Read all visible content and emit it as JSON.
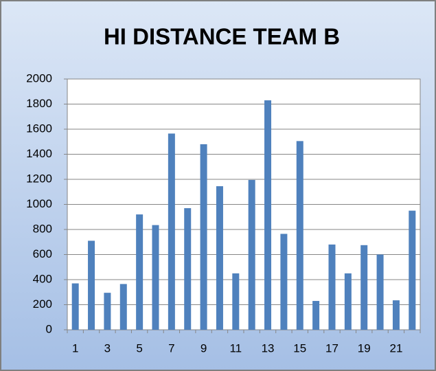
{
  "chart_data": {
    "type": "bar",
    "title": "HI DISTANCE TEAM B",
    "categories": [
      1,
      null,
      3,
      null,
      5,
      null,
      7,
      null,
      9,
      null,
      11,
      null,
      13,
      null,
      15,
      null,
      17,
      null,
      19,
      null,
      21,
      null
    ],
    "values": [
      370,
      710,
      295,
      365,
      920,
      835,
      1565,
      970,
      1480,
      1145,
      450,
      1195,
      1830,
      765,
      1505,
      230,
      680,
      450,
      675,
      600,
      235,
      950
    ],
    "color": "#4f81bd",
    "ylim": [
      0,
      2000
    ],
    "yticks": [
      0,
      200,
      400,
      600,
      800,
      1000,
      1200,
      1400,
      1600,
      1800,
      2000
    ],
    "grid": true
  }
}
